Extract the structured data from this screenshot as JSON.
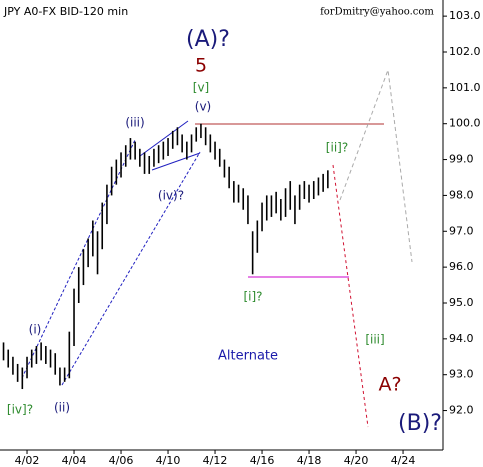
{
  "chart_data": {
    "type": "hilo",
    "title": "JPY A0-FX BID-120 min",
    "subtitle": "forDmitry@yahoo.com",
    "color": "#000000",
    "x": [
      -1.0,
      -0.8,
      -0.6,
      -0.4,
      -0.2,
      0.0,
      0.2,
      0.4,
      0.6,
      0.8,
      1.0,
      1.2,
      1.4,
      1.6,
      1.8,
      2.0,
      2.2,
      2.4,
      2.6,
      2.8,
      3.0,
      3.2,
      3.4,
      3.6,
      3.8,
      4.0,
      4.2,
      4.4,
      4.6,
      4.8,
      5.0,
      5.2,
      5.4,
      5.6,
      5.8,
      6.0,
      6.2,
      6.4,
      6.6,
      6.8,
      7.0,
      7.2,
      7.4,
      7.6,
      7.8,
      8.0,
      8.2,
      8.4,
      8.6,
      8.8,
      9.0,
      9.2,
      9.4,
      9.6,
      9.8,
      10.0,
      10.2,
      10.4,
      10.6,
      10.8,
      11.0,
      11.2,
      11.4,
      11.6,
      11.8,
      12.0,
      12.2,
      12.4,
      12.6,
      12.8
    ],
    "low": [
      93.4,
      93.2,
      93.0,
      92.8,
      92.6,
      92.9,
      93.2,
      93.3,
      93.4,
      93.3,
      93.2,
      93.0,
      92.7,
      92.8,
      92.9,
      93.8,
      95.0,
      95.5,
      96.0,
      96.3,
      95.8,
      96.5,
      97.2,
      98.0,
      98.3,
      98.5,
      98.8,
      99.0,
      99.0,
      98.8,
      98.6,
      98.6,
      98.8,
      98.9,
      99.0,
      99.1,
      99.3,
      99.4,
      99.2,
      99.0,
      99.2,
      99.5,
      99.6,
      99.4,
      99.2,
      99.0,
      98.8,
      98.5,
      98.2,
      97.8,
      97.8,
      97.6,
      97.2,
      95.8,
      96.4,
      97.0,
      97.3,
      97.4,
      97.5,
      97.3,
      97.4,
      97.6,
      97.2,
      97.6,
      97.9,
      97.8,
      97.9,
      98.0,
      98.1,
      98.2
    ],
    "high": [
      93.9,
      93.7,
      93.5,
      93.3,
      93.2,
      93.5,
      93.7,
      93.8,
      93.9,
      93.8,
      93.7,
      93.6,
      93.2,
      93.2,
      94.2,
      95.4,
      96.0,
      96.5,
      96.8,
      97.3,
      97.0,
      97.8,
      98.3,
      98.8,
      99.0,
      99.2,
      99.4,
      99.6,
      99.5,
      99.3,
      99.2,
      99.1,
      99.3,
      99.4,
      99.5,
      99.6,
      99.8,
      99.9,
      99.7,
      99.5,
      99.7,
      99.9,
      100.0,
      99.9,
      99.7,
      99.5,
      99.3,
      99.0,
      98.8,
      98.4,
      98.3,
      98.2,
      98.0,
      97.0,
      97.3,
      97.8,
      98.0,
      98.0,
      98.1,
      97.9,
      98.2,
      98.4,
      98.0,
      98.3,
      98.4,
      98.3,
      98.4,
      98.5,
      98.6,
      98.7
    ],
    "xlim": [
      -1.15,
      17.7
    ],
    "xticks": [
      {
        "value": 0,
        "label": "4/02"
      },
      {
        "value": 2,
        "label": "4/04"
      },
      {
        "value": 4,
        "label": "4/06"
      },
      {
        "value": 6,
        "label": "4/10"
      },
      {
        "value": 8,
        "label": "4/12"
      },
      {
        "value": 10,
        "label": "4/16"
      },
      {
        "value": 12,
        "label": "4/18"
      },
      {
        "value": 14,
        "label": "4/20"
      },
      {
        "value": 16,
        "label": "4/24"
      }
    ],
    "ylim": [
      90.9,
      103.45
    ],
    "yticks": [
      {
        "value": 92,
        "label": "92.0"
      },
      {
        "value": 93,
        "label": "93.0"
      },
      {
        "value": 94,
        "label": "94.0"
      },
      {
        "value": 95,
        "label": "95.0"
      },
      {
        "value": 96,
        "label": "96.0"
      },
      {
        "value": 97,
        "label": "97.0"
      },
      {
        "value": 98,
        "label": "98.0"
      },
      {
        "value": 99,
        "label": "99.0"
      },
      {
        "value": 100,
        "label": "100.0"
      },
      {
        "value": 101,
        "label": "101.0"
      },
      {
        "value": 102,
        "label": "102.0"
      },
      {
        "value": 103,
        "label": "103.0"
      }
    ],
    "annotations": [
      {
        "text": "(A)?",
        "color": "#1a1a7a"
      },
      {
        "text": "5",
        "color": "#8b0000"
      },
      {
        "text": "[v]",
        "color": "#2e8b2e"
      },
      {
        "text": "(v)",
        "color": "#1a1a7a"
      },
      {
        "text": "(iii)",
        "color": "#1a1a7a"
      },
      {
        "text": "(iv)?",
        "color": "#1a1a7a"
      },
      {
        "text": "[ii]?",
        "color": "#2e8b2e"
      },
      {
        "text": "[i]?",
        "color": "#2e8b2e"
      },
      {
        "text": "(i)",
        "color": "#1a1a7a"
      },
      {
        "text": "(ii)",
        "color": "#1a1a7a"
      },
      {
        "text": "[iv]?",
        "color": "#2e8b2e"
      },
      {
        "text": "Alternate",
        "color": "#1a1aaa"
      },
      {
        "text": "[iii]",
        "color": "#2e8b2e"
      },
      {
        "text": "A?",
        "color": "#8b0000"
      },
      {
        "text": "(B)?",
        "color": "#1a1a7a"
      }
    ]
  }
}
